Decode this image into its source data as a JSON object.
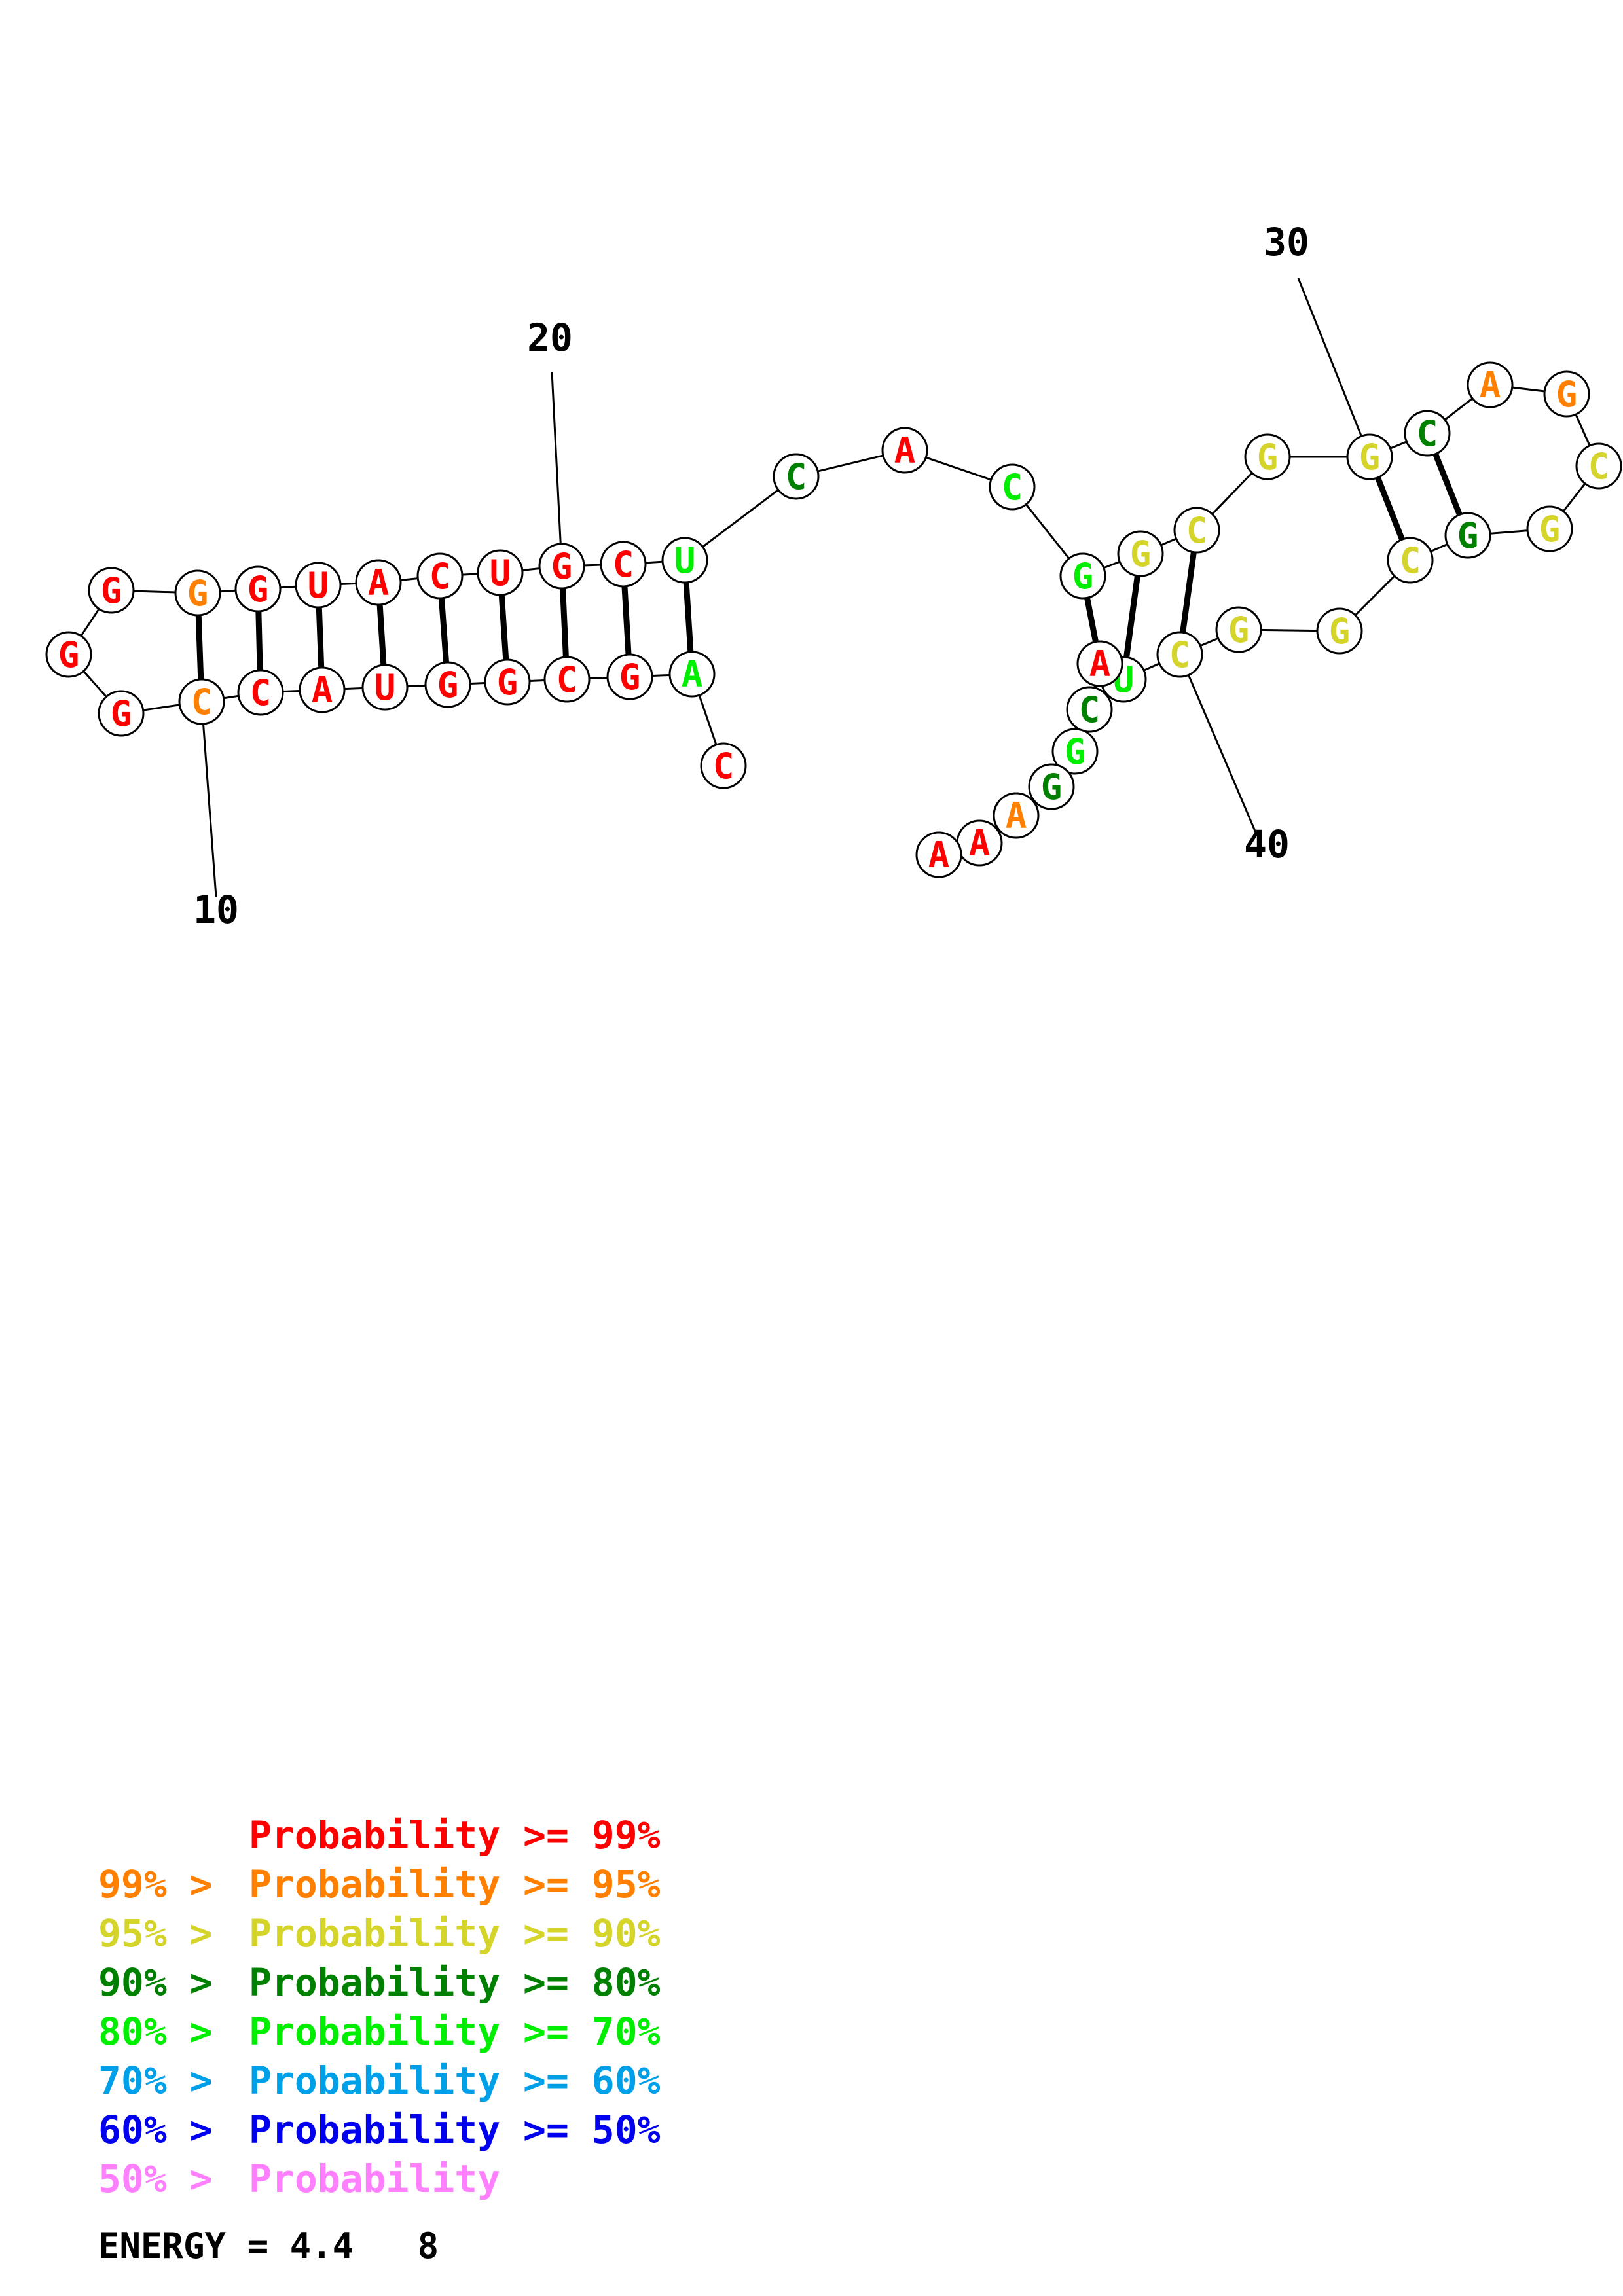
{
  "colors": {
    "p99": "#ff0000",
    "p95": "#ff8000",
    "p90": "#d4d42a",
    "p80": "#008000",
    "p70": "#00ee00",
    "p60": "#00a0e8",
    "p50": "#0000ee",
    "plow": "#ff80ff"
  },
  "position_labels": [
    "10",
    "20",
    "30",
    "40"
  ],
  "nucleotides": [
    {
      "n": 1,
      "base": "C",
      "prob": "p99"
    },
    {
      "n": 2,
      "base": "A",
      "prob": "p70"
    },
    {
      "n": 3,
      "base": "G",
      "prob": "p99"
    },
    {
      "n": 4,
      "base": "C",
      "prob": "p99"
    },
    {
      "n": 5,
      "base": "G",
      "prob": "p99"
    },
    {
      "n": 6,
      "base": "G",
      "prob": "p99"
    },
    {
      "n": 7,
      "base": "U",
      "prob": "p99"
    },
    {
      "n": 8,
      "base": "A",
      "prob": "p99"
    },
    {
      "n": 9,
      "base": "C",
      "prob": "p99"
    },
    {
      "n": 10,
      "base": "C",
      "prob": "p95"
    },
    {
      "n": 11,
      "base": "G",
      "prob": "p99"
    },
    {
      "n": 12,
      "base": "G",
      "prob": "p99"
    },
    {
      "n": 13,
      "base": "G",
      "prob": "p99"
    },
    {
      "n": 14,
      "base": "G",
      "prob": "p95"
    },
    {
      "n": 15,
      "base": "G",
      "prob": "p99"
    },
    {
      "n": 16,
      "base": "U",
      "prob": "p99"
    },
    {
      "n": 17,
      "base": "A",
      "prob": "p99"
    },
    {
      "n": 18,
      "base": "C",
      "prob": "p99"
    },
    {
      "n": 19,
      "base": "U",
      "prob": "p99"
    },
    {
      "n": 20,
      "base": "G",
      "prob": "p99"
    },
    {
      "n": 21,
      "base": "C",
      "prob": "p99"
    },
    {
      "n": 22,
      "base": "U",
      "prob": "p70"
    },
    {
      "n": 23,
      "base": "C",
      "prob": "p80"
    },
    {
      "n": 24,
      "base": "A",
      "prob": "p99"
    },
    {
      "n": 25,
      "base": "C",
      "prob": "p70"
    },
    {
      "n": 26,
      "base": "G",
      "prob": "p70"
    },
    {
      "n": 27,
      "base": "G",
      "prob": "p90"
    },
    {
      "n": 28,
      "base": "C",
      "prob": "p90"
    },
    {
      "n": 29,
      "base": "G",
      "prob": "p90"
    },
    {
      "n": 30,
      "base": "G",
      "prob": "p90"
    },
    {
      "n": 31,
      "base": "C",
      "prob": "p80"
    },
    {
      "n": 32,
      "base": "A",
      "prob": "p95"
    },
    {
      "n": 33,
      "base": "G",
      "prob": "p95"
    },
    {
      "n": 34,
      "base": "C",
      "prob": "p90"
    },
    {
      "n": 35,
      "base": "G",
      "prob": "p90"
    },
    {
      "n": 36,
      "base": "G",
      "prob": "p80"
    },
    {
      "n": 37,
      "base": "C",
      "prob": "p90"
    },
    {
      "n": 38,
      "base": "G",
      "prob": "p90"
    },
    {
      "n": 39,
      "base": "G",
      "prob": "p90"
    },
    {
      "n": 40,
      "base": "C",
      "prob": "p90"
    },
    {
      "n": 41,
      "base": "U",
      "prob": "p70"
    },
    {
      "n": 42,
      "base": "A",
      "prob": "p99"
    },
    {
      "n": 43,
      "base": "C",
      "prob": "p80"
    },
    {
      "n": 44,
      "base": "G",
      "prob": "p70"
    },
    {
      "n": 45,
      "base": "G",
      "prob": "p80"
    },
    {
      "n": 46,
      "base": "A",
      "prob": "p95"
    },
    {
      "n": 47,
      "base": "A",
      "prob": "p99"
    },
    {
      "n": 48,
      "base": "A",
      "prob": "p99"
    }
  ],
  "base_pairs": [
    [
      2,
      22
    ],
    [
      3,
      21
    ],
    [
      4,
      20
    ],
    [
      5,
      19
    ],
    [
      6,
      18
    ],
    [
      7,
      17
    ],
    [
      8,
      16
    ],
    [
      9,
      15
    ],
    [
      10,
      14
    ],
    [
      26,
      42
    ],
    [
      27,
      41
    ],
    [
      28,
      40
    ],
    [
      30,
      37
    ],
    [
      31,
      36
    ]
  ],
  "legend": [
    {
      "range": "",
      "label": "Probability >= 99%",
      "color": "p99"
    },
    {
      "range": "99% > ",
      "label": "Probability >= 95%",
      "color": "p95"
    },
    {
      "range": "95% > ",
      "label": "Probability >= 90%",
      "color": "p90"
    },
    {
      "range": "90% > ",
      "label": "Probability >= 80%",
      "color": "p80"
    },
    {
      "range": "80% > ",
      "label": "Probability >= 70%",
      "color": "p70"
    },
    {
      "range": "70% > ",
      "label": "Probability >= 60%",
      "color": "p60"
    },
    {
      "range": "60% > ",
      "label": "Probability >= 50%",
      "color": "p50"
    },
    {
      "range": "50% > ",
      "label": "Probability",
      "color": "plow"
    }
  ],
  "energy_text": "ENERGY = 4.4   8"
}
